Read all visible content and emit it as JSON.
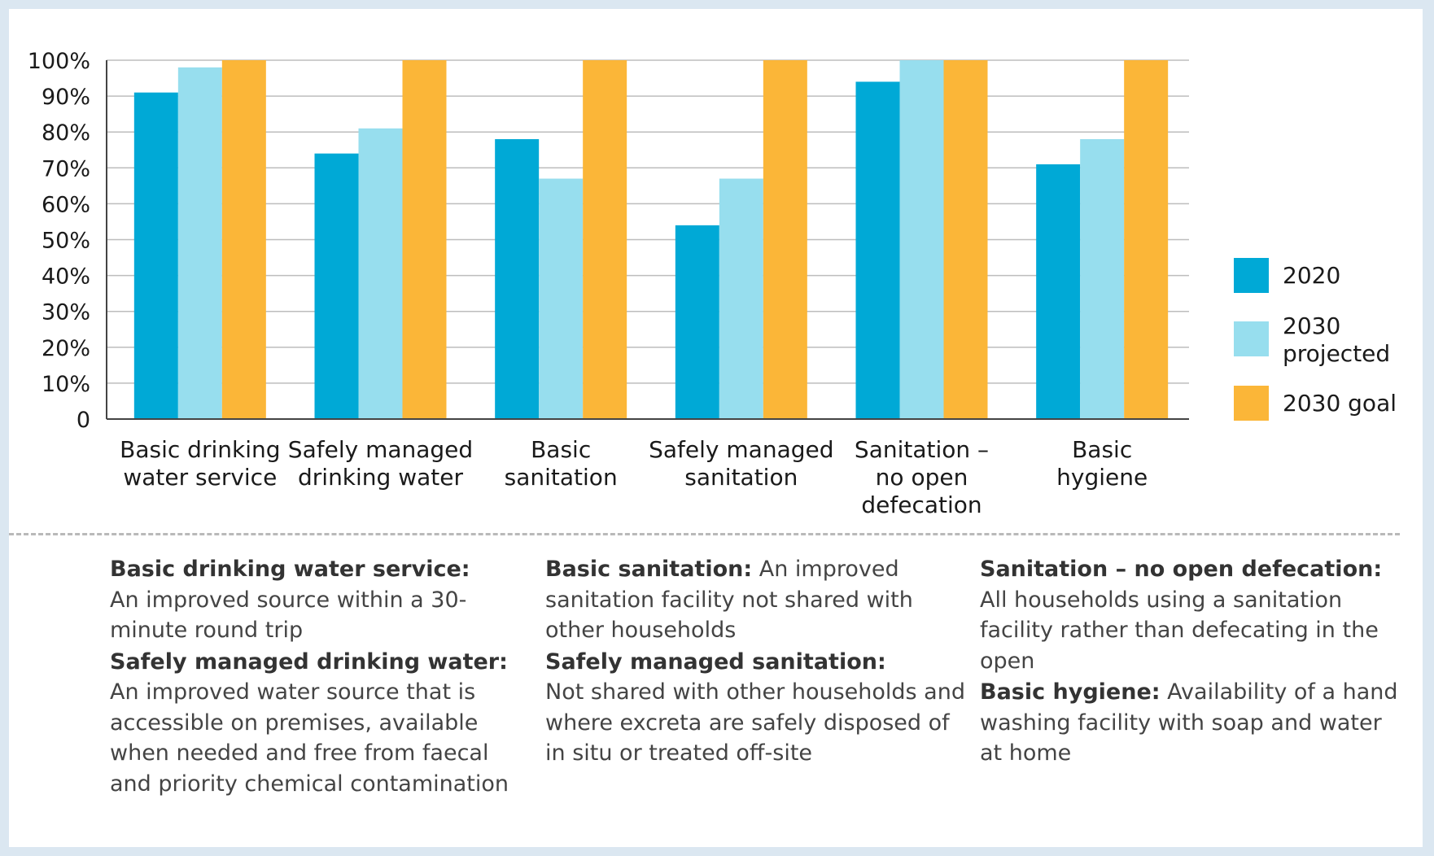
{
  "chart_data": {
    "type": "bar",
    "categories": [
      [
        "Basic drinking",
        "water service"
      ],
      [
        "Safely managed",
        "drinking water"
      ],
      [
        "Basic",
        "sanitation"
      ],
      [
        "Safely managed",
        "sanitation"
      ],
      [
        "Sanitation –",
        "no open",
        "defecation"
      ],
      [
        "Basic",
        "hygiene"
      ]
    ],
    "series": [
      {
        "name": "2020",
        "color": "#00a9d6",
        "values": [
          91,
          74,
          78,
          54,
          94,
          71
        ]
      },
      {
        "name": "2030 projected",
        "color": "#97deee",
        "values": [
          98,
          81,
          67,
          67,
          100,
          78
        ]
      },
      {
        "name": "2030 goal",
        "color": "#fbb638",
        "values": [
          100,
          100,
          100,
          100,
          100,
          100
        ]
      }
    ],
    "legend_labels": [
      [
        "2020"
      ],
      [
        "2030",
        "projected"
      ],
      [
        "2030 goal"
      ]
    ],
    "y_ticks": [
      "0",
      "10%",
      "20%",
      "30%",
      "40%",
      "50%",
      "60%",
      "70%",
      "80%",
      "90%",
      "100%"
    ],
    "ylim": [
      0,
      100
    ],
    "grid": true,
    "legend": "right",
    "axis_color": "#444444",
    "grid_color": "#bdbdbd"
  },
  "definitions": {
    "col1": [
      {
        "term": "Basic drinking water service:",
        "text": "An improved source within a 30-minute round trip",
        "newline": true
      },
      {
        "term": "Safely managed drinking water:",
        "text": "An improved water source that is accessible on premises, available when needed and free from faecal and priority chemical contamination",
        "newline": true
      }
    ],
    "col2": [
      {
        "term": "Basic sanitation:",
        "text": " An improved sanitation facility not shared with other households",
        "newline": false
      },
      {
        "term": "Safely managed sanitation:",
        "text": "Not shared with other households and where excreta are safely disposed of in situ or treated off-site",
        "newline": true
      }
    ],
    "col3": [
      {
        "term": "Sanitation – no open defecation:",
        "text": "All households using a sanitation facility rather than defecating in the open",
        "newline": true
      },
      {
        "term": "Basic hygiene:",
        "text": " Availability of a hand washing facility with soap and water at home",
        "newline": false
      }
    ]
  }
}
